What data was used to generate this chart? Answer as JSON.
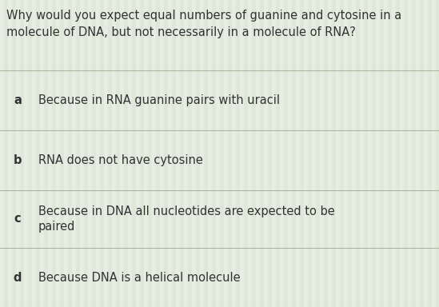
{
  "background_color": "#efefea",
  "stripe_colors": [
    "#e8ede3",
    "#dde8d8"
  ],
  "question": "Why would you expect equal numbers of guanine and cytosine in a\nmolecule of DNA, but not necessarily in a molecule of RNA?",
  "options": [
    {
      "label": "a",
      "text": "Because in RNA guanine pairs with uracil"
    },
    {
      "label": "b",
      "text": "RNA does not have cytosine"
    },
    {
      "label": "c",
      "text": "Because in DNA all nucleotides are expected to be\npaired"
    },
    {
      "label": "d",
      "text": "Because DNA is a helical molecule"
    }
  ],
  "question_fontsize": 10.5,
  "option_fontsize": 10.5,
  "label_fontsize": 10.5,
  "text_color": "#333333",
  "label_color": "#333333",
  "divider_color": "#aab8a0",
  "fig_width": 5.49,
  "fig_height": 3.84,
  "dpi": 100
}
